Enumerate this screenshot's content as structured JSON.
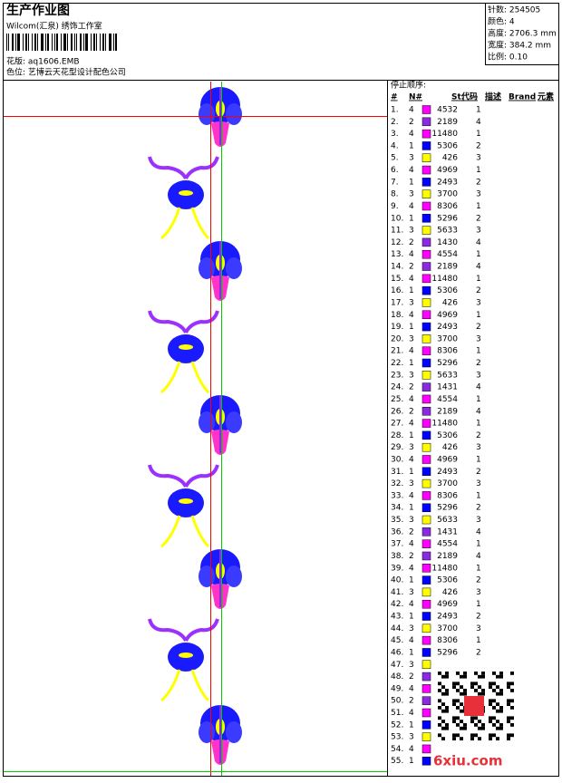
{
  "header": {
    "title": "生产作业图",
    "company": "Wilcom(汇泉) 绣饰工作室",
    "design_file": "花版: aq1606.EMB",
    "colorway": "色位: 艺博云天花型设计配色公司"
  },
  "info": [
    "针数: 254505",
    "颜色: 4",
    "高度: 2706.3 mm",
    "宽度: 384.2 mm",
    "比例: 0.10"
  ],
  "table": {
    "label": "停止顺序:",
    "columns": [
      "#",
      "N#",
      "St.",
      "代码",
      "描述",
      "Brand",
      "元素"
    ],
    "swatch_colors": {
      "1": "#0000ff",
      "2": "#8a2be2",
      "3": "#ffff00",
      "4": "#ff00ff"
    },
    "rows": [
      [
        "1.",
        "4",
        "4532",
        "1"
      ],
      [
        "2.",
        "2",
        "2189",
        "4"
      ],
      [
        "3.",
        "4",
        "11480",
        "1"
      ],
      [
        "4.",
        "1",
        "5306",
        "2"
      ],
      [
        "5.",
        "3",
        "426",
        "3"
      ],
      [
        "6.",
        "4",
        "4969",
        "1"
      ],
      [
        "7.",
        "1",
        "2493",
        "2"
      ],
      [
        "8.",
        "3",
        "3700",
        "3"
      ],
      [
        "9.",
        "4",
        "8306",
        "1"
      ],
      [
        "10.",
        "1",
        "5296",
        "2"
      ],
      [
        "11.",
        "3",
        "5633",
        "3"
      ],
      [
        "12.",
        "2",
        "1430",
        "4"
      ],
      [
        "13.",
        "4",
        "4554",
        "1"
      ],
      [
        "14.",
        "2",
        "2189",
        "4"
      ],
      [
        "15.",
        "4",
        "11480",
        "1"
      ],
      [
        "16.",
        "1",
        "5306",
        "2"
      ],
      [
        "17.",
        "3",
        "426",
        "3"
      ],
      [
        "18.",
        "4",
        "4969",
        "1"
      ],
      [
        "19.",
        "1",
        "2493",
        "2"
      ],
      [
        "20.",
        "3",
        "3700",
        "3"
      ],
      [
        "21.",
        "4",
        "8306",
        "1"
      ],
      [
        "22.",
        "1",
        "5296",
        "2"
      ],
      [
        "23.",
        "3",
        "5633",
        "3"
      ],
      [
        "24.",
        "2",
        "1431",
        "4"
      ],
      [
        "25.",
        "4",
        "4554",
        "1"
      ],
      [
        "26.",
        "2",
        "2189",
        "4"
      ],
      [
        "27.",
        "4",
        "11480",
        "1"
      ],
      [
        "28.",
        "1",
        "5306",
        "2"
      ],
      [
        "29.",
        "3",
        "426",
        "3"
      ],
      [
        "30.",
        "4",
        "4969",
        "1"
      ],
      [
        "31.",
        "1",
        "2493",
        "2"
      ],
      [
        "32.",
        "3",
        "3700",
        "3"
      ],
      [
        "33.",
        "4",
        "8306",
        "1"
      ],
      [
        "34.",
        "1",
        "5296",
        "2"
      ],
      [
        "35.",
        "3",
        "5633",
        "3"
      ],
      [
        "36.",
        "2",
        "1431",
        "4"
      ],
      [
        "37.",
        "4",
        "4554",
        "1"
      ],
      [
        "38.",
        "2",
        "2189",
        "4"
      ],
      [
        "39.",
        "4",
        "11480",
        "1"
      ],
      [
        "40.",
        "1",
        "5306",
        "2"
      ],
      [
        "41.",
        "3",
        "426",
        "3"
      ],
      [
        "42.",
        "4",
        "4969",
        "1"
      ],
      [
        "43.",
        "1",
        "2493",
        "2"
      ],
      [
        "44.",
        "3",
        "3700",
        "3"
      ],
      [
        "45.",
        "4",
        "8306",
        "1"
      ],
      [
        "46.",
        "1",
        "5296",
        "2"
      ],
      [
        "47.",
        "3"
      ],
      [
        "48.",
        "2"
      ],
      [
        "49.",
        "4"
      ],
      [
        "50.",
        "2"
      ],
      [
        "51.",
        "4"
      ],
      [
        "52.",
        "1"
      ],
      [
        "53.",
        "3"
      ],
      [
        "54.",
        "4"
      ],
      [
        "55.",
        "1"
      ]
    ]
  },
  "watermark": "6xiu.com"
}
